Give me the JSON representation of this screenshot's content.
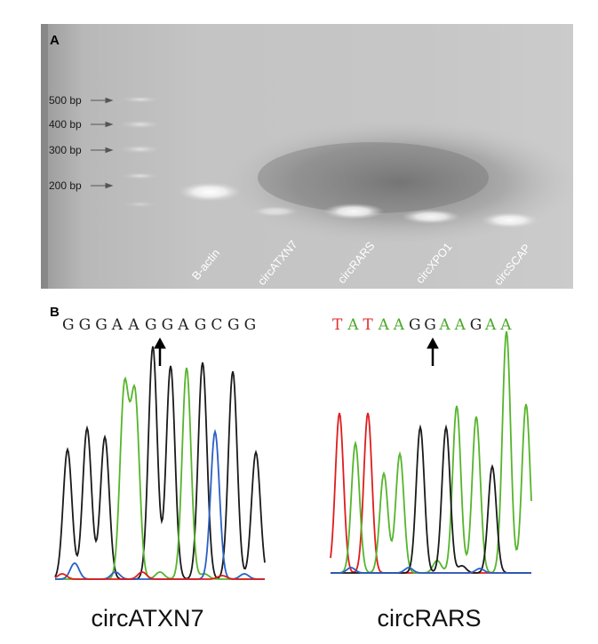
{
  "figure": {
    "panel_a": {
      "label": "A",
      "ladder": [
        {
          "label": "500 bp"
        },
        {
          "label": "400 bp"
        },
        {
          "label": "300 bp"
        },
        {
          "label": "200 bp"
        }
      ],
      "lanes": [
        {
          "label": "B-actin"
        },
        {
          "label": "circATXN7"
        },
        {
          "label": "circRARS"
        },
        {
          "label": "circXPO1"
        },
        {
          "label": "circSCAP"
        }
      ]
    },
    "panel_b": {
      "label": "B",
      "chromatograms": [
        {
          "name": "circATXN7",
          "sequence": [
            {
              "base": "G",
              "color": "#222222"
            },
            {
              "base": "G",
              "color": "#222222"
            },
            {
              "base": "G",
              "color": "#222222"
            },
            {
              "base": "A",
              "color": "#222222"
            },
            {
              "base": "A",
              "color": "#222222"
            },
            {
              "base": "G",
              "color": "#222222"
            },
            {
              "base": "G",
              "color": "#222222"
            },
            {
              "base": "A",
              "color": "#222222"
            },
            {
              "base": "G",
              "color": "#222222"
            },
            {
              "base": "C",
              "color": "#222222"
            },
            {
              "base": "G",
              "color": "#222222"
            },
            {
              "base": "G",
              "color": "#222222"
            }
          ]
        },
        {
          "name": "circRARS",
          "sequence": [
            {
              "base": "T",
              "color": "#e03030"
            },
            {
              "base": "A",
              "color": "#4aa82a"
            },
            {
              "base": "T",
              "color": "#e03030"
            },
            {
              "base": "A",
              "color": "#4aa82a"
            },
            {
              "base": "A",
              "color": "#4aa82a"
            },
            {
              "base": "G",
              "color": "#222222"
            },
            {
              "base": "G",
              "color": "#222222"
            },
            {
              "base": "A",
              "color": "#4aa82a"
            },
            {
              "base": "A",
              "color": "#4aa82a"
            },
            {
              "base": "G",
              "color": "#222222"
            },
            {
              "base": "A",
              "color": "#4aa82a"
            },
            {
              "base": "A",
              "color": "#4aa82a"
            }
          ]
        }
      ]
    },
    "trace_colors": {
      "G": "#1a1a1a",
      "A": "#55b52b",
      "C": "#2a5fc4",
      "T": "#e01c1c"
    }
  }
}
